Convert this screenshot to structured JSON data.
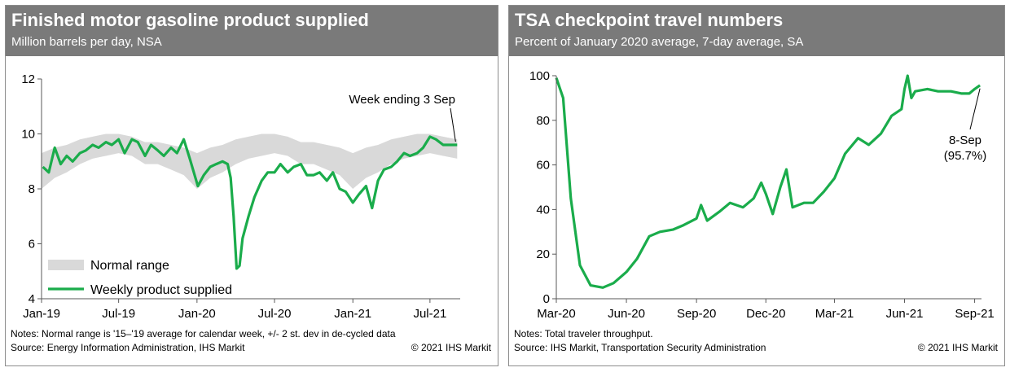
{
  "colors": {
    "header_bg": "#7a7a7a",
    "series_green": "#1aac4b",
    "band_gray": "#d9d9d9",
    "axis": "#595959"
  },
  "chart_data": [
    {
      "type": "area",
      "title": "Finished motor gasoline product supplied",
      "subtitle": "Million barrels per day, NSA",
      "xlabel": "",
      "ylabel": "",
      "ylim": [
        4,
        12
      ],
      "y_ticks": [
        4,
        6,
        8,
        10,
        12
      ],
      "x_range": [
        "2019-01-01",
        "2021-09-10"
      ],
      "x_ticks": [
        {
          "date": "2019-01-01",
          "label": "Jan-19"
        },
        {
          "date": "2019-07-01",
          "label": "Jul-19"
        },
        {
          "date": "2020-01-01",
          "label": "Jan-20"
        },
        {
          "date": "2020-07-01",
          "label": "Jul-20"
        },
        {
          "date": "2021-01-01",
          "label": "Jan-21"
        },
        {
          "date": "2021-07-01",
          "label": "Jul-21"
        }
      ],
      "grid": false,
      "legend_position": "bottom-left",
      "series": [
        {
          "name": "Normal range",
          "kind": "band",
          "x": [
            "2019-01-01",
            "2019-02-01",
            "2019-03-01",
            "2019-04-01",
            "2019-05-01",
            "2019-06-01",
            "2019-07-01",
            "2019-08-01",
            "2019-09-01",
            "2019-10-01",
            "2019-11-01",
            "2019-12-01",
            "2020-01-01",
            "2020-02-01",
            "2020-03-01",
            "2020-04-01",
            "2020-05-01",
            "2020-06-01",
            "2020-07-01",
            "2020-08-01",
            "2020-09-01",
            "2020-10-01",
            "2020-11-01",
            "2020-12-01",
            "2021-01-01",
            "2021-02-01",
            "2021-03-01",
            "2021-04-01",
            "2021-05-01",
            "2021-06-01",
            "2021-07-01",
            "2021-08-01",
            "2021-09-03"
          ],
          "lower": [
            8.0,
            8.4,
            8.6,
            8.9,
            9.1,
            9.2,
            9.3,
            9.2,
            8.9,
            8.9,
            8.7,
            8.5,
            8.0,
            8.4,
            8.6,
            8.9,
            9.1,
            9.2,
            9.3,
            9.2,
            8.9,
            8.9,
            8.7,
            8.5,
            8.0,
            8.4,
            8.6,
            8.9,
            9.1,
            9.2,
            9.3,
            9.2,
            9.1
          ],
          "upper": [
            9.3,
            9.5,
            9.6,
            9.8,
            9.9,
            10.0,
            10.0,
            9.9,
            9.7,
            9.7,
            9.6,
            9.5,
            9.3,
            9.5,
            9.6,
            9.8,
            9.9,
            10.0,
            10.0,
            9.9,
            9.7,
            9.7,
            9.6,
            9.5,
            9.3,
            9.5,
            9.6,
            9.8,
            9.9,
            10.0,
            10.0,
            9.9,
            9.8
          ]
        },
        {
          "name": "Weekly product supplied",
          "kind": "line",
          "x": [
            "2019-01-04",
            "2019-01-18",
            "2019-02-01",
            "2019-02-15",
            "2019-03-01",
            "2019-03-15",
            "2019-04-01",
            "2019-04-15",
            "2019-05-01",
            "2019-05-15",
            "2019-06-01",
            "2019-06-15",
            "2019-07-01",
            "2019-07-15",
            "2019-08-01",
            "2019-08-15",
            "2019-09-01",
            "2019-09-15",
            "2019-10-01",
            "2019-10-15",
            "2019-11-01",
            "2019-11-15",
            "2019-12-01",
            "2019-12-15",
            "2020-01-03",
            "2020-01-17",
            "2020-02-01",
            "2020-02-15",
            "2020-03-01",
            "2020-03-13",
            "2020-03-20",
            "2020-03-27",
            "2020-04-03",
            "2020-04-10",
            "2020-04-17",
            "2020-05-01",
            "2020-05-15",
            "2020-06-01",
            "2020-06-15",
            "2020-07-01",
            "2020-07-15",
            "2020-08-01",
            "2020-08-15",
            "2020-09-01",
            "2020-09-15",
            "2020-10-01",
            "2020-10-15",
            "2020-11-01",
            "2020-11-15",
            "2020-12-01",
            "2020-12-15",
            "2021-01-01",
            "2021-01-15",
            "2021-02-01",
            "2021-02-15",
            "2021-03-01",
            "2021-03-15",
            "2021-04-01",
            "2021-04-15",
            "2021-05-01",
            "2021-05-15",
            "2021-06-01",
            "2021-06-15",
            "2021-07-01",
            "2021-07-15",
            "2021-08-01",
            "2021-08-15",
            "2021-09-03"
          ],
          "y": [
            8.8,
            8.6,
            9.5,
            8.9,
            9.2,
            9.0,
            9.3,
            9.4,
            9.6,
            9.5,
            9.7,
            9.6,
            9.8,
            9.3,
            9.8,
            9.7,
            9.2,
            9.6,
            9.4,
            9.2,
            9.5,
            9.3,
            9.8,
            9.1,
            8.1,
            8.5,
            8.8,
            8.9,
            9.0,
            8.9,
            8.4,
            7.0,
            5.1,
            5.2,
            6.2,
            7.0,
            7.7,
            8.3,
            8.6,
            8.6,
            8.9,
            8.6,
            8.8,
            8.9,
            8.5,
            8.5,
            8.6,
            8.3,
            8.6,
            8.0,
            7.9,
            7.5,
            7.8,
            8.1,
            7.3,
            8.3,
            8.7,
            8.8,
            9.0,
            9.3,
            9.2,
            9.3,
            9.5,
            9.9,
            9.8,
            9.6,
            9.6,
            9.6
          ]
        }
      ],
      "annotations": [
        {
          "text": "Week ending 3 Sep"
        }
      ],
      "notes": "Notes: Normal range is '15–'19 average for calendar week, +/- 2 st. dev in de-cycled data",
      "source": "Source: Energy Information Administration, IHS Markit",
      "copyright": "© 2021 IHS Markit"
    },
    {
      "type": "line",
      "title": "TSA checkpoint travel numbers",
      "subtitle": "Percent of January 2020 average, 7-day average, SA",
      "xlabel": "",
      "ylabel": "",
      "ylim": [
        0,
        100
      ],
      "y_ticks": [
        0,
        20,
        40,
        60,
        80,
        100
      ],
      "x_range": [
        "2020-03-01",
        "2021-09-10"
      ],
      "x_ticks": [
        {
          "date": "2020-03-01",
          "label": "Mar-20"
        },
        {
          "date": "2020-06-01",
          "label": "Jun-20"
        },
        {
          "date": "2020-09-01",
          "label": "Sep-20"
        },
        {
          "date": "2020-12-01",
          "label": "Dec-20"
        },
        {
          "date": "2021-03-01",
          "label": "Mar-21"
        },
        {
          "date": "2021-06-01",
          "label": "Jun-21"
        },
        {
          "date": "2021-09-01",
          "label": "Sep-21"
        }
      ],
      "grid": false,
      "series": [
        {
          "kind": "line",
          "x": [
            "2020-03-01",
            "2020-03-10",
            "2020-03-20",
            "2020-04-01",
            "2020-04-15",
            "2020-05-01",
            "2020-05-15",
            "2020-06-01",
            "2020-06-15",
            "2020-07-01",
            "2020-07-15",
            "2020-08-01",
            "2020-08-15",
            "2020-09-01",
            "2020-09-07",
            "2020-09-15",
            "2020-10-01",
            "2020-10-15",
            "2020-11-01",
            "2020-11-15",
            "2020-11-25",
            "2020-12-01",
            "2020-12-10",
            "2020-12-20",
            "2020-12-28",
            "2021-01-05",
            "2021-01-20",
            "2021-02-01",
            "2021-02-15",
            "2021-03-01",
            "2021-03-15",
            "2021-04-01",
            "2021-04-15",
            "2021-05-01",
            "2021-05-15",
            "2021-05-28",
            "2021-06-01",
            "2021-06-05",
            "2021-06-10",
            "2021-06-15",
            "2021-07-01",
            "2021-07-15",
            "2021-08-01",
            "2021-08-15",
            "2021-08-25",
            "2021-09-01",
            "2021-09-08"
          ],
          "y": [
            99,
            90,
            45,
            15,
            6,
            5,
            7,
            12,
            18,
            28,
            30,
            31,
            33,
            36,
            42,
            35,
            39,
            43,
            41,
            45,
            52,
            47,
            38,
            50,
            58,
            41,
            43,
            43,
            48,
            54,
            65,
            72,
            69,
            74,
            82,
            85,
            94,
            100,
            90,
            93,
            94,
            93,
            93,
            92,
            92,
            94,
            95.7
          ]
        }
      ],
      "annotations": [
        {
          "text": "8-Sep",
          "subtext": "(95.7%)"
        }
      ],
      "notes": "Notes: Total traveler throughput.",
      "source": "Source: IHS Markit, Transportation Security Administration",
      "copyright": "© 2021 IHS Markit"
    }
  ]
}
